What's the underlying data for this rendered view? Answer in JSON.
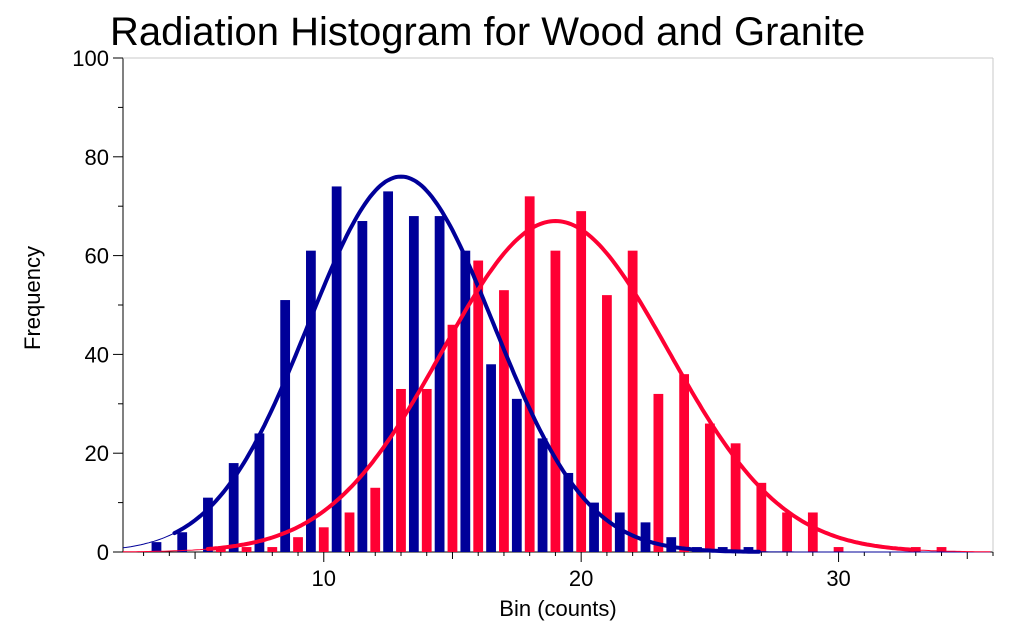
{
  "chart_data": {
    "type": "bar",
    "title": "Radiation Histogram for Wood and Granite",
    "xlabel": "Bin (counts)",
    "ylabel": "Frequency",
    "xlim": [
      2.2,
      36
    ],
    "ylim": [
      0,
      100
    ],
    "x_ticks": [
      10,
      20,
      30
    ],
    "y_ticks": [
      0,
      20,
      40,
      60,
      80,
      100
    ],
    "grid": false,
    "legend": "none",
    "series": [
      {
        "color": "#000099",
        "bins": [
          4,
          5,
          6,
          7,
          8,
          9,
          10,
          11,
          12,
          13,
          14,
          15,
          16,
          17,
          18,
          19,
          20,
          21,
          22,
          23,
          24,
          25,
          26,
          27
        ],
        "values": [
          2,
          4,
          11,
          18,
          24,
          51,
          61,
          74,
          67,
          73,
          68,
          68,
          61,
          38,
          31,
          23,
          16,
          10,
          8,
          6,
          3,
          1,
          1,
          1
        ],
        "fit_curve": {
          "type": "gaussian",
          "peak": 76,
          "mean": 13,
          "sd": 3.6,
          "x_range": [
            4.2,
            27
          ]
        }
      },
      {
        "color": "#FF0033",
        "bins": [
          6,
          7,
          8,
          9,
          10,
          11,
          12,
          13,
          14,
          15,
          16,
          17,
          18,
          19,
          20,
          21,
          22,
          23,
          24,
          25,
          26,
          27,
          28,
          29,
          30,
          31,
          32,
          33,
          34
        ],
        "values": [
          1,
          1,
          1,
          3,
          5,
          8,
          13,
          33,
          33,
          46,
          59,
          53,
          72,
          61,
          69,
          52,
          61,
          32,
          36,
          26,
          22,
          14,
          8,
          8,
          1,
          0,
          0,
          1,
          1
        ],
        "fit_curve": {
          "type": "gaussian",
          "peak": 67,
          "mean": 19,
          "sd": 4.4,
          "x_range": [
            5.5,
            33
          ]
        }
      }
    ]
  }
}
